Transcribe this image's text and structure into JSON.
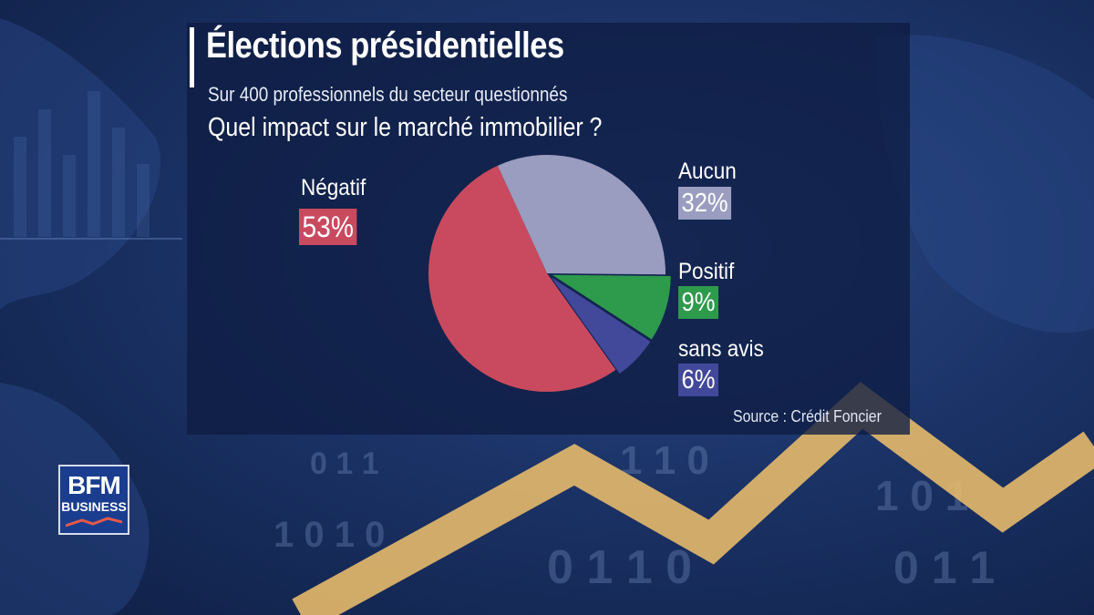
{
  "header": {
    "title": "Élections présidentielles",
    "subtitle": "Sur 400 professionnels du secteur questionnés",
    "question": "Quel impact sur le marché immobilier ?"
  },
  "source": "Source : Crédit Foncier",
  "logo": {
    "line1": "BFM",
    "line2": "BUSINESS"
  },
  "colors": {
    "negatif": "#c94a5e",
    "aucun": "#9a9dc0",
    "positif": "#2e9a4c",
    "sans_avis": "#42489a"
  },
  "chart_data": {
    "type": "pie",
    "title": "Quel impact sur le marché immobilier ?",
    "slices": [
      {
        "label": "Aucun",
        "value": 32,
        "display": "32%",
        "color": "#9a9dc0"
      },
      {
        "label": "Positif",
        "value": 9,
        "display": "9%",
        "color": "#2e9a4c"
      },
      {
        "label": "sans avis",
        "value": 6,
        "display": "6%",
        "color": "#42489a"
      },
      {
        "label": "Négatif",
        "value": 53,
        "display": "53%",
        "color": "#c94a5e"
      }
    ]
  }
}
